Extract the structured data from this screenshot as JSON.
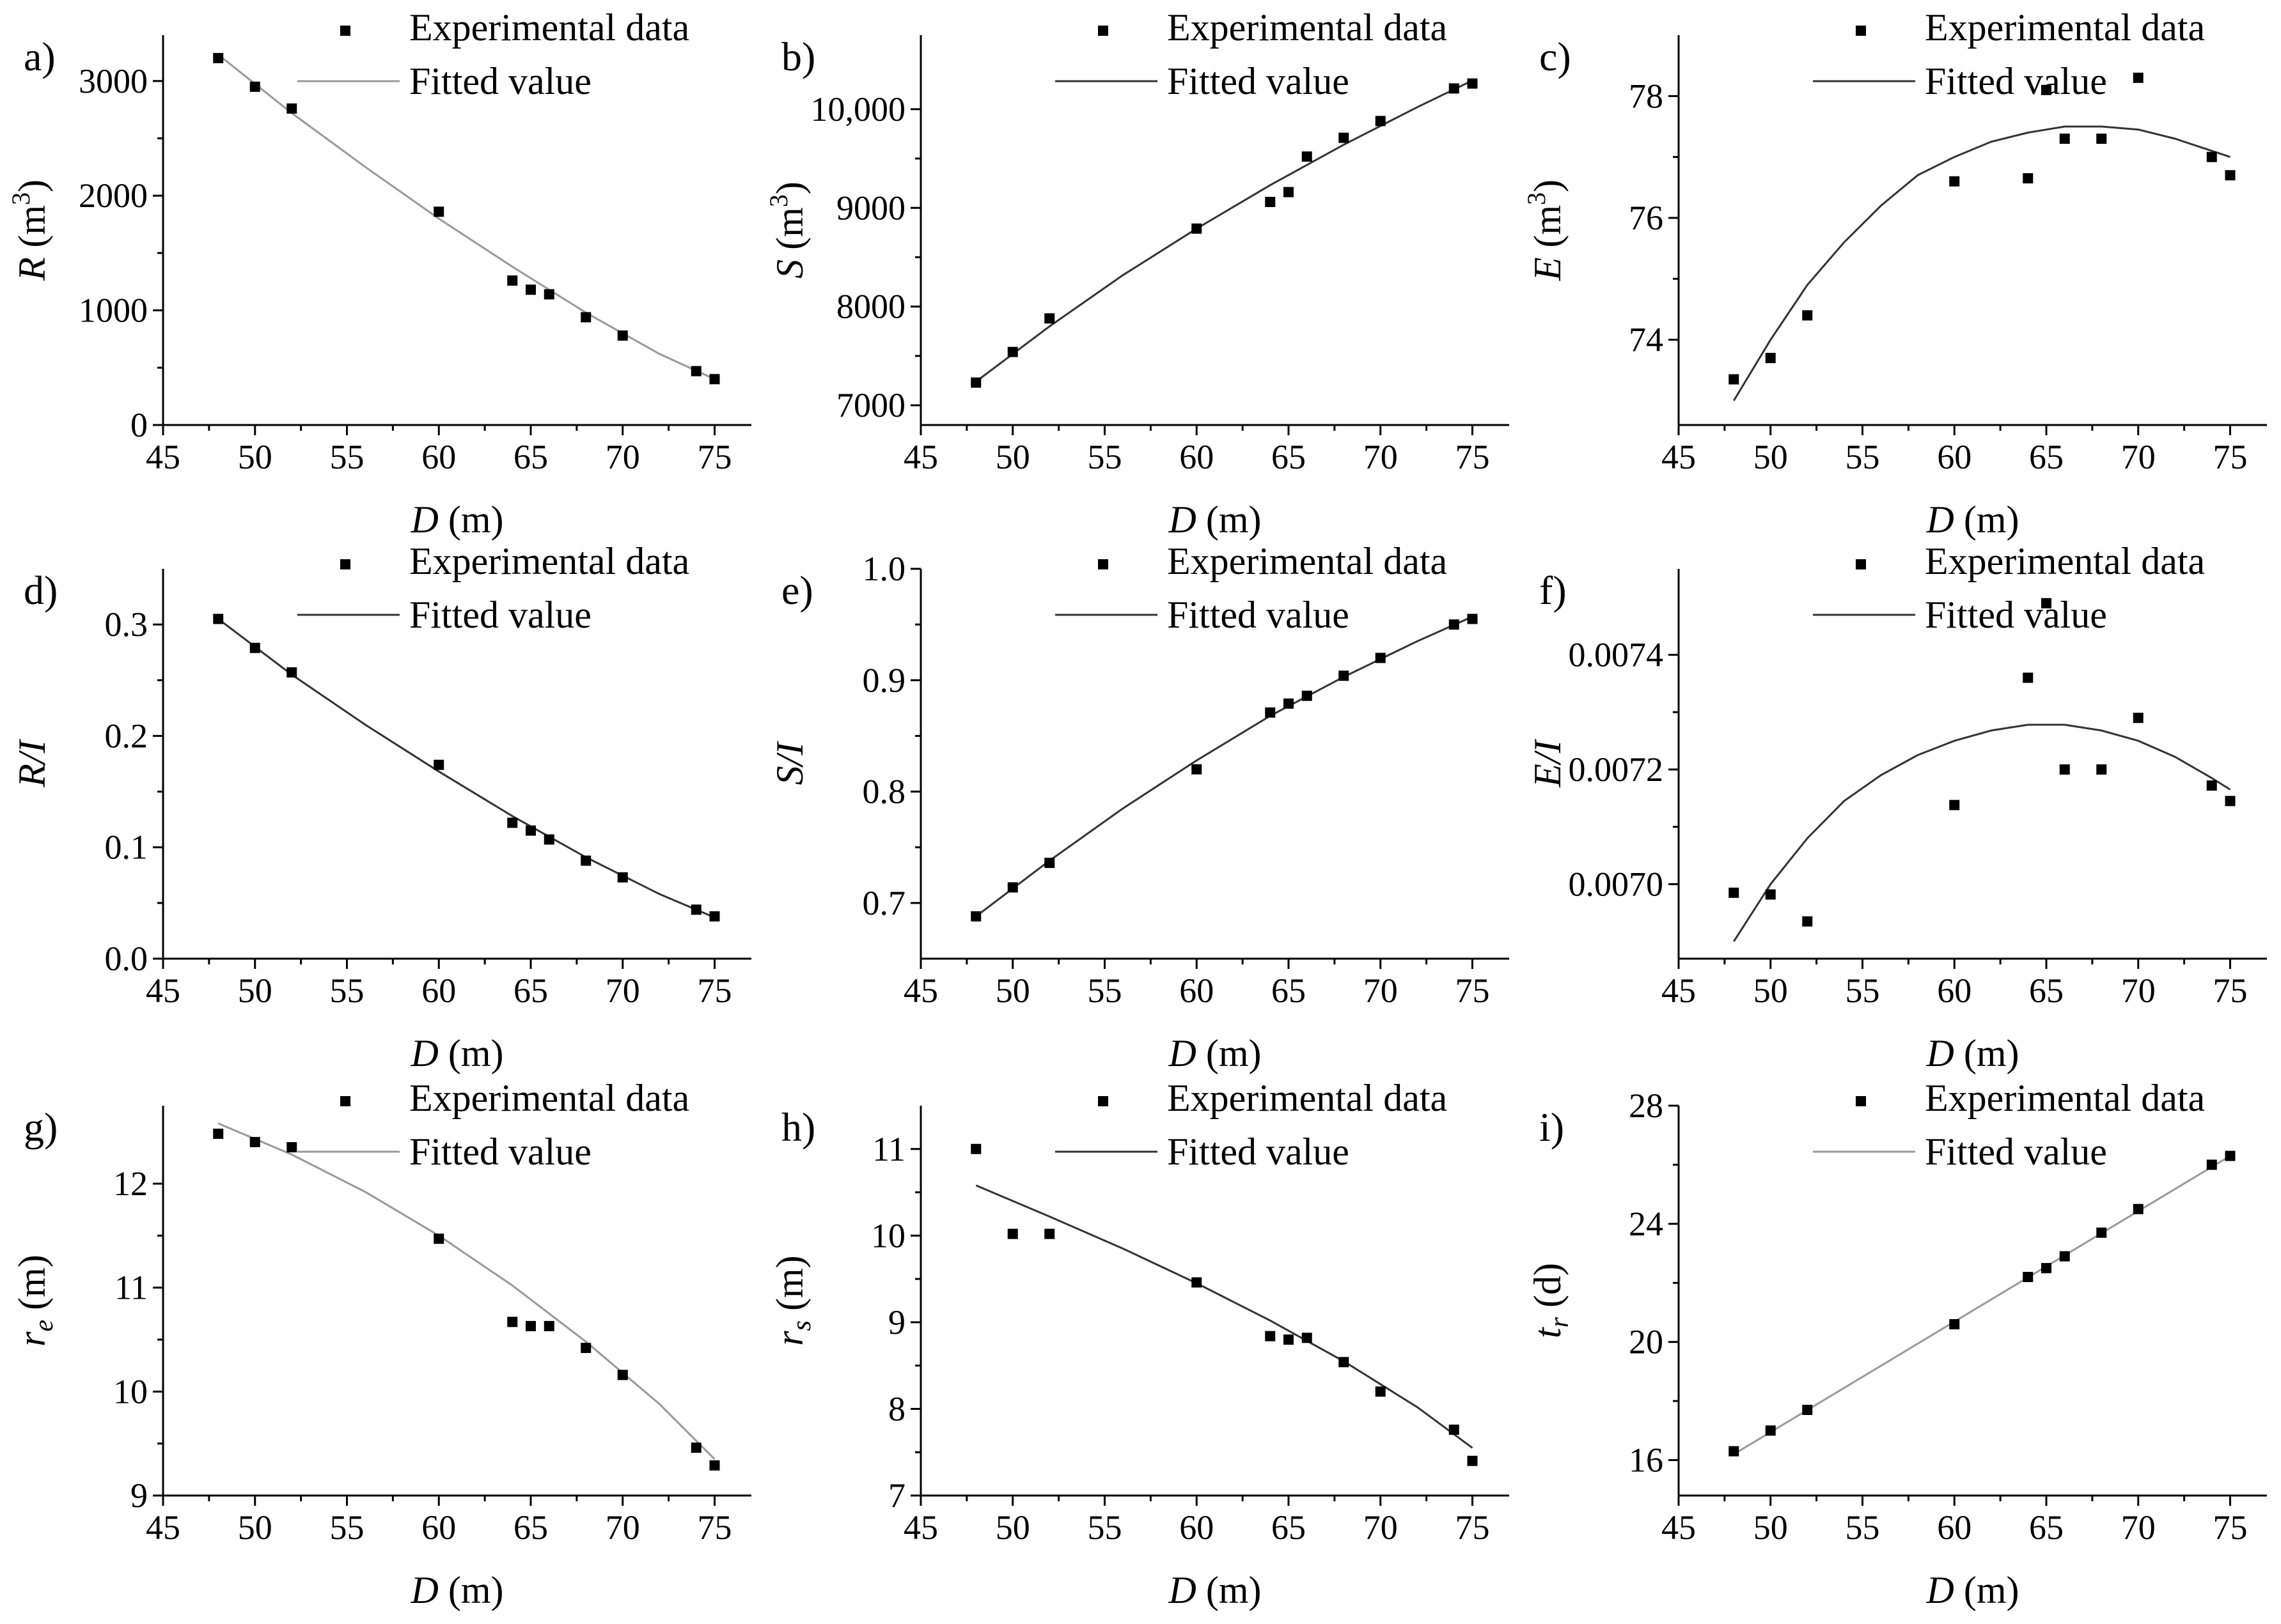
{
  "legend": {
    "experimental": "Experimental data",
    "fitted": "Fitted value"
  },
  "colors": {
    "axis": "#000000",
    "points": "#000000",
    "fit_dark": "#333333",
    "fit_light": "#999999"
  },
  "chart_data": [
    {
      "panel_label": "a)",
      "type": "scatter",
      "xlabel": "D (m)",
      "ylabel": {
        "var": "R",
        "unit": " (m",
        "sup": "3",
        "close": ")"
      },
      "xlim": [
        45,
        77
      ],
      "ylim": [
        0,
        3400
      ],
      "xticks": [
        45,
        50,
        55,
        60,
        65,
        70,
        75
      ],
      "yticks": [
        0,
        1000,
        2000,
        3000
      ],
      "yticklabels": [
        "0",
        "1000",
        "2000",
        "3000"
      ],
      "x": [
        48,
        50,
        52,
        60,
        64,
        65,
        66,
        68,
        70,
        74,
        75
      ],
      "y": [
        3200,
        2950,
        2760,
        1860,
        1260,
        1180,
        1140,
        940,
        780,
        470,
        400
      ],
      "fit": {
        "x": [
          48,
          52,
          56,
          60,
          64,
          68,
          72,
          75
        ],
        "y": [
          3230,
          2720,
          2250,
          1800,
          1380,
          980,
          620,
          400
        ]
      },
      "fit_style": "light"
    },
    {
      "panel_label": "b)",
      "type": "scatter",
      "xlabel": "D (m)",
      "ylabel": {
        "var": "S",
        "unit": " (m",
        "sup": "3",
        "close": ")"
      },
      "xlim": [
        45,
        77
      ],
      "ylim": [
        6800,
        10750
      ],
      "xticks": [
        45,
        50,
        55,
        60,
        65,
        70,
        75
      ],
      "yticks": [
        7000,
        8000,
        9000,
        10000
      ],
      "yticklabels": [
        "7000",
        "8000",
        "9000",
        "10,000"
      ],
      "x": [
        48,
        50,
        52,
        60,
        64,
        65,
        66,
        68,
        70,
        74,
        75
      ],
      "y": [
        7230,
        7540,
        7880,
        8790,
        9060,
        9160,
        9520,
        9710,
        9880,
        10210,
        10260
      ],
      "fit": {
        "x": [
          48,
          52,
          56,
          60,
          64,
          68,
          72,
          75
        ],
        "y": [
          7240,
          7800,
          8320,
          8790,
          9230,
          9640,
          10020,
          10290
        ]
      },
      "fit_style": "dark"
    },
    {
      "panel_label": "c)",
      "type": "scatter",
      "xlabel": "D (m)",
      "ylabel": {
        "var": "E",
        "unit": " (m",
        "sup": "3",
        "close": ")"
      },
      "xlim": [
        45,
        77
      ],
      "ylim": [
        72.6,
        79.0
      ],
      "xticks": [
        45,
        50,
        55,
        60,
        65,
        70,
        75
      ],
      "yticks": [
        74,
        76,
        78
      ],
      "yticklabels": [
        "74",
        "76",
        "78"
      ],
      "x": [
        48,
        50,
        52,
        60,
        64,
        65,
        66,
        68,
        70,
        74,
        75
      ],
      "y": [
        73.35,
        73.7,
        74.4,
        76.6,
        76.65,
        78.1,
        77.3,
        77.3,
        78.3,
        77.0,
        76.7
      ],
      "fit": {
        "x": [
          48,
          50,
          52,
          54,
          56,
          58,
          60,
          62,
          64,
          66,
          68,
          70,
          72,
          74,
          75
        ],
        "y": [
          73.0,
          74.0,
          74.9,
          75.6,
          76.2,
          76.7,
          77.0,
          77.25,
          77.4,
          77.5,
          77.5,
          77.45,
          77.3,
          77.1,
          77.0
        ]
      },
      "fit_style": "dark"
    },
    {
      "panel_label": "d)",
      "type": "scatter",
      "xlabel": "D (m)",
      "ylabel": {
        "var": "R/I",
        "unit": "",
        "sup": "",
        "close": ""
      },
      "xlim": [
        45,
        77
      ],
      "ylim": [
        0,
        0.35
      ],
      "xticks": [
        45,
        50,
        55,
        60,
        65,
        70,
        75
      ],
      "yticks": [
        0,
        0.1,
        0.2,
        0.3
      ],
      "yticklabels": [
        "0.0",
        "0.1",
        "0.2",
        "0.3"
      ],
      "x": [
        48,
        50,
        52,
        60,
        64,
        65,
        66,
        68,
        70,
        74,
        75
      ],
      "y": [
        0.305,
        0.279,
        0.257,
        0.174,
        0.122,
        0.115,
        0.107,
        0.088,
        0.073,
        0.044,
        0.038
      ],
      "fit": {
        "x": [
          48,
          52,
          56,
          60,
          64,
          68,
          72,
          75
        ],
        "y": [
          0.305,
          0.255,
          0.21,
          0.168,
          0.128,
          0.091,
          0.058,
          0.037
        ]
      },
      "fit_style": "dark"
    },
    {
      "panel_label": "e)",
      "type": "scatter",
      "xlabel": "D (m)",
      "ylabel": {
        "var": "S/I",
        "unit": "",
        "sup": "",
        "close": ""
      },
      "xlim": [
        45,
        77
      ],
      "ylim": [
        0.65,
        1.0
      ],
      "xticks": [
        45,
        50,
        55,
        60,
        65,
        70,
        75
      ],
      "yticks": [
        0.7,
        0.8,
        0.9,
        1.0
      ],
      "yticklabels": [
        "0.7",
        "0.8",
        "0.9",
        "1.0"
      ],
      "x": [
        48,
        50,
        52,
        60,
        64,
        65,
        66,
        68,
        70,
        74,
        75
      ],
      "y": [
        0.688,
        0.714,
        0.736,
        0.82,
        0.871,
        0.879,
        0.886,
        0.904,
        0.92,
        0.95,
        0.955
      ],
      "fit": {
        "x": [
          48,
          52,
          56,
          60,
          64,
          68,
          72,
          75
        ],
        "y": [
          0.688,
          0.738,
          0.785,
          0.828,
          0.868,
          0.903,
          0.935,
          0.957
        ]
      },
      "fit_style": "dark"
    },
    {
      "panel_label": "f)",
      "type": "scatter",
      "xlabel": "D (m)",
      "ylabel": {
        "var": "E/I",
        "unit": "",
        "sup": "",
        "close": ""
      },
      "xlim": [
        45,
        77
      ],
      "ylim": [
        0.00687,
        0.00755
      ],
      "xticks": [
        45,
        50,
        55,
        60,
        65,
        70,
        75
      ],
      "yticks": [
        0.007,
        0.0072,
        0.0074
      ],
      "yticklabels": [
        "0.0070",
        "0.0072",
        "0.0074"
      ],
      "x": [
        48,
        50,
        52,
        60,
        64,
        65,
        66,
        68,
        70,
        74,
        75
      ],
      "y": [
        0.006985,
        0.006982,
        0.006935,
        0.007138,
        0.00736,
        0.00749,
        0.0072,
        0.0072,
        0.00729,
        0.007172,
        0.007145
      ],
      "fit": {
        "x": [
          48,
          50,
          52,
          54,
          56,
          58,
          60,
          62,
          64,
          66,
          68,
          70,
          72,
          74,
          75
        ],
        "y": [
          0.0069,
          0.007,
          0.00708,
          0.007145,
          0.00719,
          0.007225,
          0.00725,
          0.007268,
          0.007278,
          0.007278,
          0.007268,
          0.00725,
          0.007222,
          0.007185,
          0.007165
        ]
      },
      "fit_style": "dark"
    },
    {
      "panel_label": "g)",
      "type": "scatter",
      "xlabel": "D (m)",
      "ylabel": {
        "var": "r",
        "sub": "e",
        "unit": " (m)",
        "sup": "",
        "close": ""
      },
      "xlim": [
        45,
        77
      ],
      "ylim": [
        9.0,
        12.75
      ],
      "xticks": [
        45,
        50,
        55,
        60,
        65,
        70,
        75
      ],
      "yticks": [
        9,
        10,
        11,
        12
      ],
      "yticklabels": [
        "9",
        "10",
        "11",
        "12"
      ],
      "x": [
        48,
        50,
        52,
        60,
        64,
        65,
        66,
        68,
        70,
        74,
        75
      ],
      "y": [
        12.48,
        12.4,
        12.35,
        11.47,
        10.67,
        10.63,
        10.63,
        10.42,
        10.16,
        9.46,
        9.29
      ],
      "fit": {
        "x": [
          48,
          52,
          56,
          60,
          64,
          68,
          72,
          75
        ],
        "y": [
          12.58,
          12.28,
          11.92,
          11.5,
          11.02,
          10.48,
          9.88,
          9.35
        ]
      },
      "fit_style": "light"
    },
    {
      "panel_label": "h)",
      "type": "scatter",
      "xlabel": "D (m)",
      "ylabel": {
        "var": "r",
        "sub": "s",
        "unit": " (m)",
        "sup": "",
        "close": ""
      },
      "xlim": [
        45,
        77
      ],
      "ylim": [
        7.0,
        11.5
      ],
      "xticks": [
        45,
        50,
        55,
        60,
        65,
        70,
        75
      ],
      "yticks": [
        7,
        8,
        9,
        10,
        11
      ],
      "yticklabels": [
        "7",
        "8",
        "9",
        "10",
        "11"
      ],
      "x": [
        48,
        50,
        52,
        60,
        64,
        65,
        66,
        68,
        70,
        74,
        75
      ],
      "y": [
        11.0,
        10.02,
        10.02,
        9.46,
        8.84,
        8.8,
        8.82,
        8.54,
        8.2,
        7.76,
        7.4
      ],
      "fit": {
        "x": [
          48,
          52,
          56,
          60,
          64,
          68,
          72,
          75
        ],
        "y": [
          10.58,
          10.22,
          9.85,
          9.45,
          9.02,
          8.55,
          8.02,
          7.55
        ]
      },
      "fit_style": "dark"
    },
    {
      "panel_label": "i)",
      "type": "scatter",
      "xlabel": "D (m)",
      "ylabel": {
        "var": "t",
        "sub": "r",
        "unit": " (d)",
        "sup": "",
        "close": ""
      },
      "xlim": [
        45,
        77
      ],
      "ylim": [
        14.8,
        28.0
      ],
      "xticks": [
        45,
        50,
        55,
        60,
        65,
        70,
        75
      ],
      "yticks": [
        16,
        20,
        24,
        28
      ],
      "yticklabels": [
        "16",
        "20",
        "24",
        "28"
      ],
      "x": [
        48,
        50,
        52,
        60,
        64,
        65,
        66,
        68,
        70,
        74,
        75
      ],
      "y": [
        16.3,
        17.0,
        17.7,
        20.6,
        22.2,
        22.5,
        22.9,
        23.7,
        24.5,
        26.0,
        26.3
      ],
      "fit": {
        "x": [
          48,
          75
        ],
        "y": [
          16.2,
          26.3
        ]
      },
      "fit_style": "light"
    }
  ]
}
